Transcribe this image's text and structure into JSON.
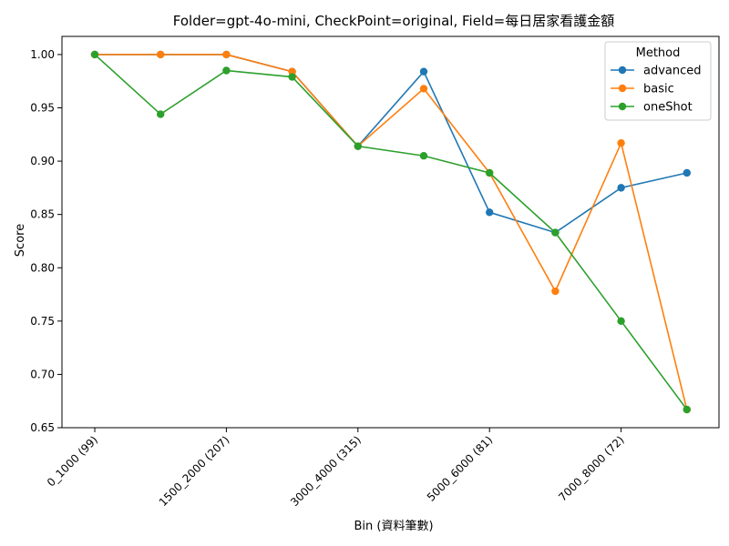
{
  "chart_data": {
    "type": "line",
    "title": "Folder=gpt-4o-mini, CheckPoint=original, Field=每日居家看護金額",
    "xlabel": "Bin (資料筆數)",
    "ylabel": "Score",
    "ylim": [
      0.65,
      1.017
    ],
    "yticks": [
      "0.65",
      "0.70",
      "0.75",
      "0.80",
      "0.85",
      "0.90",
      "0.95",
      "1.00"
    ],
    "categories": [
      "0_1000 (99)",
      "",
      "1500_2000 (207)",
      "",
      "3000_4000 (315)",
      "",
      "5000_6000 (81)",
      "",
      "7000_8000 (72)",
      ""
    ],
    "legend": {
      "title": "Method",
      "placement": "top-right"
    },
    "series": [
      {
        "name": "advanced",
        "color": "#1f77b4",
        "values": [
          1.0,
          1.0,
          1.0,
          0.984,
          0.914,
          0.984,
          0.852,
          0.833,
          0.875,
          0.889
        ]
      },
      {
        "name": "basic",
        "color": "#ff7f0e",
        "values": [
          1.0,
          1.0,
          1.0,
          0.984,
          0.914,
          0.968,
          0.889,
          0.778,
          0.917,
          0.667
        ]
      },
      {
        "name": "oneShot",
        "color": "#2ca02c",
        "values": [
          1.0,
          0.944,
          0.985,
          0.979,
          0.914,
          0.905,
          0.889,
          0.833,
          0.75,
          0.667
        ]
      }
    ]
  }
}
